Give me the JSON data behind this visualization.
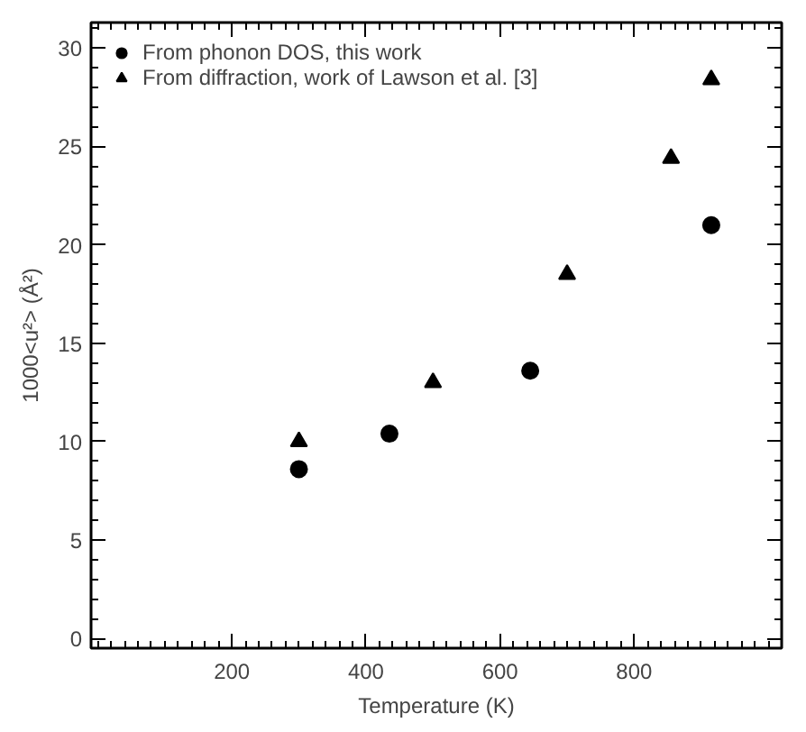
{
  "chart_data": {
    "type": "scatter",
    "xlabel": "Temperature (K)",
    "ylabel": "1000<u²> (Å²)",
    "xlim": [
      -10,
      1020
    ],
    "ylim": [
      -0.5,
      31.3
    ],
    "xticks": [
      200,
      400,
      600,
      800
    ],
    "yticks": [
      0,
      5,
      10,
      15,
      20,
      25,
      30
    ],
    "grid": false,
    "legend": "top left",
    "series": [
      {
        "name": "From phonon DOS, this work",
        "color": "#000000",
        "marker": "circle",
        "x": [
          300,
          435,
          645,
          915
        ],
        "values": [
          8.6,
          10.4,
          13.6,
          21.0
        ]
      },
      {
        "name": "From diffraction, work of Lawson et al. [3]",
        "color": "#000000",
        "marker": "triangle",
        "x": [
          300,
          500,
          700,
          855,
          915
        ],
        "values": [
          10.0,
          13.0,
          18.5,
          24.4,
          28.4
        ]
      }
    ]
  }
}
